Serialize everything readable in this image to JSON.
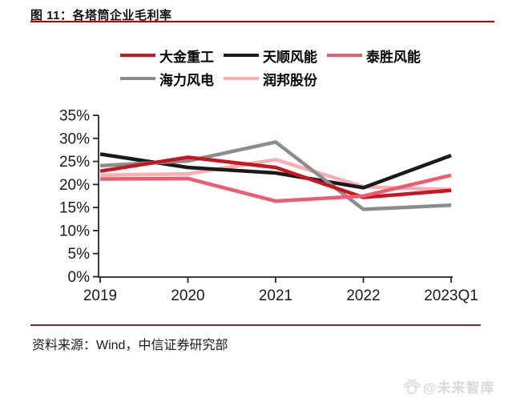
{
  "title": {
    "label": "图 11：各塔筒企业毛利率"
  },
  "source": {
    "label": "资料来源：Wind，中信证券研究部"
  },
  "watermark": {
    "label": "@未来智库"
  },
  "colors": {
    "title_rule": "#c00000",
    "footer_rule": "#862633",
    "axis": "#262626",
    "tick_label": "#1a1a1a",
    "watermark": "#d9d9d9"
  },
  "chart_data": {
    "type": "line",
    "title": "图 11：各塔筒企业毛利率",
    "categories": [
      "2019",
      "2020",
      "2021",
      "2022",
      "2023Q1"
    ],
    "series": [
      {
        "name": "大金重工",
        "color": "#c9161e",
        "values": [
          22.9,
          25.9,
          23.7,
          17.2,
          18.7
        ]
      },
      {
        "name": "天顺风能",
        "color": "#1a1a1a",
        "values": [
          26.6,
          23.7,
          22.5,
          19.3,
          26.3
        ]
      },
      {
        "name": "泰胜风能",
        "color": "#ef5b6e",
        "values": [
          21.2,
          21.3,
          16.4,
          17.5,
          22.0
        ]
      },
      {
        "name": "海力风电",
        "color": "#8c8c8c",
        "values": [
          24.1,
          25.1,
          29.2,
          14.6,
          15.5
        ]
      },
      {
        "name": "润邦股份",
        "color": "#f9aeb2",
        "values": [
          22.0,
          22.3,
          25.4,
          19.5,
          18.9
        ]
      }
    ],
    "xlabel": "",
    "ylabel": "",
    "ylim": [
      0,
      35
    ],
    "ytick_step": 5,
    "ytick_labels": [
      "0%",
      "5%",
      "10%",
      "15%",
      "20%",
      "25%",
      "30%",
      "35%"
    ],
    "grid": false,
    "legend_position": "top",
    "legend_rows": [
      [
        0,
        1,
        2
      ],
      [
        3,
        4
      ]
    ]
  }
}
